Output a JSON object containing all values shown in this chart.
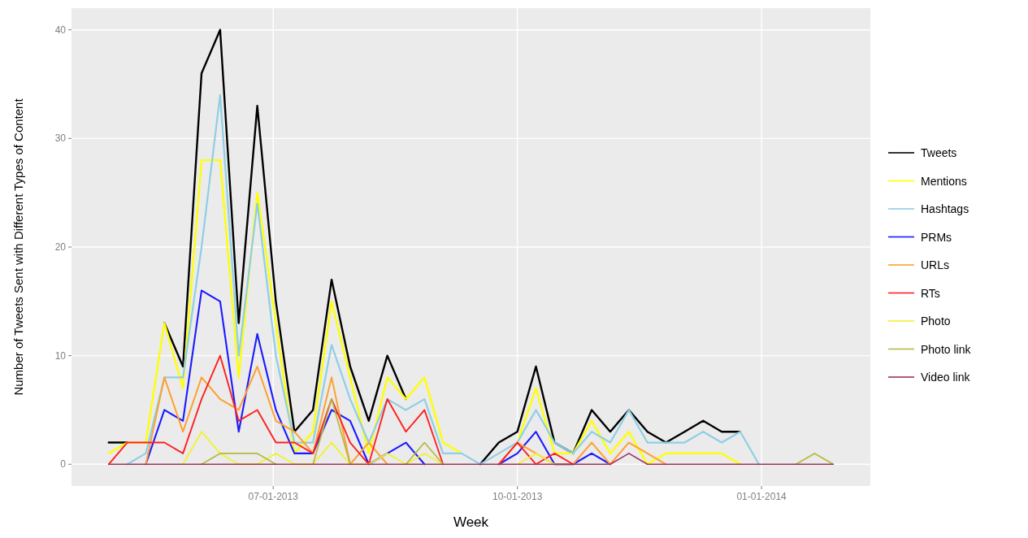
{
  "chart_data": {
    "type": "line",
    "xlabel": "Week",
    "ylabel": "Number of Tweets Sent with Different Types of Content",
    "x": [
      "2013-04-30",
      "2013-05-07",
      "2013-05-14",
      "2013-05-21",
      "2013-05-28",
      "2013-06-04",
      "2013-06-11",
      "2013-06-18",
      "2013-06-25",
      "2013-07-02",
      "2013-07-09",
      "2013-07-16",
      "2013-07-23",
      "2013-07-30",
      "2013-08-06",
      "2013-08-13",
      "2013-08-20",
      "2013-08-27",
      "2013-09-03",
      "2013-09-10",
      "2013-09-17",
      "2013-09-24",
      "2013-10-01",
      "2013-10-08",
      "2013-10-15",
      "2013-10-22",
      "2013-10-29",
      "2013-11-05",
      "2013-11-12",
      "2013-11-19",
      "2013-11-26",
      "2013-12-03",
      "2013-12-10",
      "2013-12-17",
      "2013-12-24",
      "2013-12-31",
      "2014-01-07",
      "2014-01-14",
      "2014-01-21",
      "2014-01-28"
    ],
    "series": [
      {
        "name": "Tweets",
        "color": "#000000",
        "values": [
          2,
          2,
          null,
          13,
          9,
          36,
          40,
          13,
          33,
          15,
          3,
          5,
          17,
          9,
          4,
          10,
          6,
          null,
          null,
          null,
          0,
          2,
          3,
          9,
          2,
          1,
          5,
          3,
          5,
          3,
          2,
          3,
          4,
          3,
          3,
          null,
          null,
          null,
          null,
          null
        ]
      },
      {
        "name": "Mentions",
        "color": "#ffff00",
        "values": [
          1,
          2,
          2,
          13,
          7,
          28,
          28,
          8,
          25,
          13,
          1,
          3,
          15,
          8,
          1,
          8,
          6,
          8,
          2,
          1,
          null,
          null,
          2,
          7,
          1,
          1,
          4,
          1,
          3,
          0,
          1,
          1,
          1,
          1,
          0,
          null,
          null,
          null,
          null,
          null
        ]
      },
      {
        "name": "Hashtags",
        "color": "#8ecfe6",
        "values": [
          null,
          0,
          1,
          8,
          8,
          20,
          34,
          10,
          24,
          10,
          2,
          2,
          11,
          6,
          2,
          6,
          5,
          6,
          1,
          1,
          0,
          1,
          2,
          5,
          2,
          1,
          3,
          2,
          5,
          2,
          2,
          2,
          3,
          2,
          3,
          0,
          null,
          null,
          null,
          null
        ]
      },
      {
        "name": "PRMs",
        "color": "#1a1aff",
        "values": [
          null,
          null,
          0,
          5,
          4,
          16,
          15,
          3,
          12,
          5,
          1,
          1,
          5,
          4,
          0,
          1,
          2,
          0,
          null,
          null,
          null,
          0,
          1,
          3,
          0,
          0,
          1,
          0,
          null,
          null,
          null,
          null,
          null,
          null,
          null,
          null,
          null,
          null,
          null,
          null
        ]
      },
      {
        "name": "URLs",
        "color": "#ffa030",
        "values": [
          null,
          null,
          0,
          8,
          3,
          8,
          6,
          5,
          9,
          4,
          3,
          1,
          8,
          0,
          2,
          0,
          null,
          null,
          null,
          null,
          null,
          0,
          2,
          1,
          0,
          0,
          2,
          0,
          2,
          1,
          0,
          null,
          null,
          null,
          null,
          null,
          null,
          null,
          null,
          null
        ]
      },
      {
        "name": "RTs",
        "color": "#ff2020",
        "values": [
          0,
          2,
          2,
          2,
          1,
          6,
          10,
          4,
          5,
          2,
          2,
          1,
          6,
          2,
          0,
          6,
          3,
          5,
          0,
          null,
          null,
          0,
          2,
          0,
          1,
          0,
          null,
          null,
          null,
          null,
          null,
          null,
          null,
          null,
          null,
          null,
          null,
          null,
          null,
          null
        ]
      },
      {
        "name": "Photo",
        "color": "#f2f230",
        "values": [
          null,
          null,
          null,
          null,
          0,
          3,
          1,
          0,
          0,
          1,
          0,
          0,
          2,
          0,
          0,
          1,
          0,
          1,
          0,
          null,
          null,
          null,
          0,
          1,
          0,
          null,
          null,
          null,
          null,
          null,
          null,
          null,
          null,
          null,
          null,
          null,
          null,
          null,
          null,
          null
        ]
      },
      {
        "name": "Photo link",
        "color": "#b8b840",
        "values": [
          null,
          null,
          null,
          null,
          null,
          0,
          1,
          1,
          1,
          0,
          null,
          0,
          6,
          0,
          null,
          null,
          0,
          2,
          0,
          null,
          null,
          null,
          null,
          null,
          null,
          null,
          null,
          null,
          null,
          null,
          null,
          null,
          null,
          null,
          null,
          null,
          null,
          0,
          1,
          0
        ]
      },
      {
        "name": "Video link",
        "color": "#a03060",
        "values": [
          0,
          0,
          0,
          0,
          0,
          0,
          0,
          0,
          0,
          0,
          0,
          0,
          0,
          0,
          0,
          0,
          0,
          0,
          0,
          0,
          0,
          0,
          0,
          0,
          0,
          0,
          0,
          0,
          1,
          0,
          0,
          0,
          0,
          0,
          0,
          0,
          0,
          0,
          0,
          0
        ]
      }
    ],
    "xlim": [
      "2013-04-16",
      "2014-02-11"
    ],
    "xticks": [
      {
        "value": "2013-07-01",
        "label": "07-01-2013"
      },
      {
        "value": "2013-10-01",
        "label": "10-01-2013"
      },
      {
        "value": "2014-01-01",
        "label": "01-01-2014"
      }
    ],
    "ylim": [
      -2,
      42
    ],
    "yticks": [
      0,
      10,
      20,
      30,
      40
    ],
    "grid": true,
    "legend": "right",
    "line_style": "solid",
    "marker": "none"
  }
}
